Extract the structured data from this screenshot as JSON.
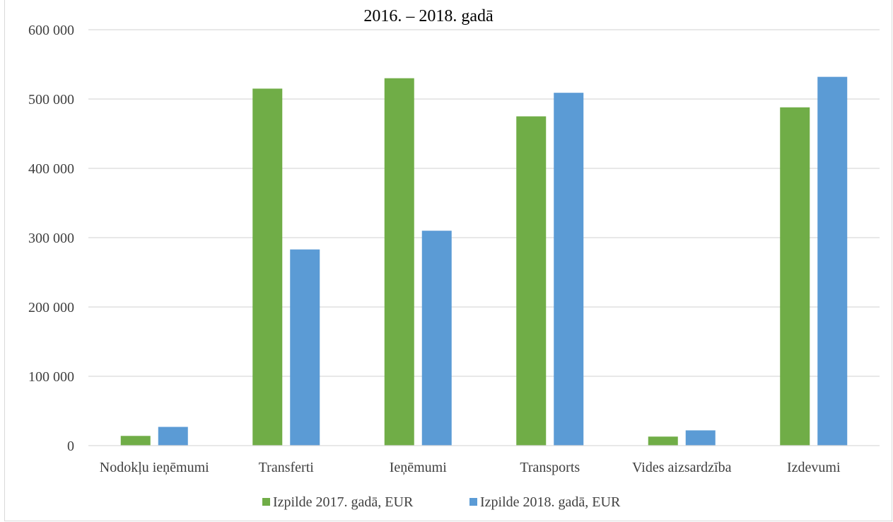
{
  "chart_data": {
    "type": "bar",
    "title": "2016. – 2018. gadā",
    "categories": [
      "Nodokļu ieņēmumi",
      "Transferti",
      "Ieņēmumi",
      "Transports",
      "Vides aizsardzība",
      "Izdevumi"
    ],
    "series": [
      {
        "name": "Izpilde 2017. gadā, EUR",
        "color": "#70ad47",
        "values": [
          14000,
          515000,
          530000,
          475000,
          13000,
          488000
        ]
      },
      {
        "name": "Izpilde 2018. gadā, EUR",
        "color": "#5b9bd5",
        "values": [
          27000,
          283000,
          310000,
          509000,
          22000,
          532000
        ]
      }
    ],
    "yticks": [
      "0",
      "100 000",
      "200 000",
      "300 000",
      "400 000",
      "500 000",
      "600 000"
    ],
    "ylim": [
      0,
      600000
    ],
    "grid": true,
    "legend_position": "bottom",
    "gridline_color": "#d9d9d9"
  }
}
